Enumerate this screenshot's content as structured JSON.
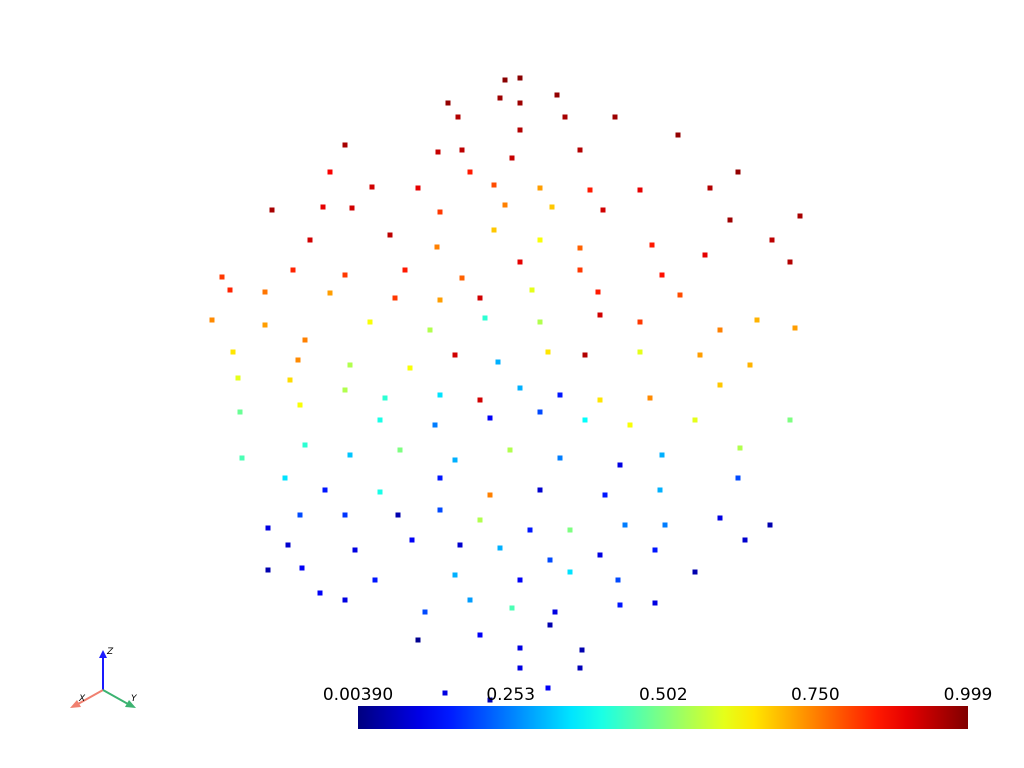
{
  "chart_data": {
    "type": "scatter",
    "xlim": [
      0,
      1024
    ],
    "ylim": [
      0,
      768
    ],
    "x": [
      520,
      505,
      448,
      500,
      557,
      520,
      458,
      565,
      615,
      520,
      678,
      345,
      438,
      462,
      512,
      580,
      330,
      372,
      418,
      470,
      494,
      540,
      590,
      640,
      710,
      738,
      272,
      323,
      352,
      440,
      505,
      552,
      603,
      730,
      800,
      310,
      390,
      437,
      494,
      540,
      580,
      652,
      705,
      772,
      790,
      293,
      345,
      405,
      462,
      520,
      580,
      662,
      222,
      230,
      265,
      330,
      395,
      440,
      480,
      532,
      598,
      680,
      212,
      265,
      305,
      370,
      430,
      485,
      540,
      600,
      640,
      720,
      757,
      795,
      233,
      298,
      350,
      410,
      455,
      498,
      548,
      585,
      640,
      700,
      750,
      238,
      290,
      345,
      385,
      440,
      480,
      520,
      560,
      600,
      650,
      720,
      240,
      300,
      380,
      435,
      490,
      540,
      585,
      630,
      695,
      790,
      242,
      305,
      350,
      400,
      455,
      510,
      560,
      620,
      662,
      740,
      285,
      325,
      380,
      440,
      490,
      540,
      605,
      660,
      738,
      268,
      300,
      345,
      398,
      440,
      480,
      530,
      570,
      625,
      665,
      720,
      770,
      288,
      355,
      412,
      460,
      500,
      550,
      600,
      655,
      745,
      268,
      302,
      375,
      455,
      520,
      570,
      618,
      695,
      320,
      345,
      425,
      470,
      512,
      555,
      620,
      655,
      480,
      550,
      418,
      520,
      582,
      580,
      520,
      490,
      548,
      445
    ],
    "y": [
      690,
      688,
      665,
      670,
      673,
      665,
      651,
      651,
      651,
      638,
      633,
      623,
      616,
      618,
      610,
      618,
      596,
      581,
      580,
      596,
      583,
      580,
      578,
      578,
      580,
      596,
      558,
      561,
      560,
      556,
      563,
      561,
      558,
      548,
      552,
      528,
      533,
      521,
      538,
      528,
      520,
      523,
      513,
      528,
      506,
      498,
      493,
      498,
      490,
      506,
      498,
      493,
      491,
      478,
      476,
      475,
      470,
      468,
      470,
      478,
      476,
      473,
      448,
      443,
      428,
      446,
      438,
      450,
      446,
      453,
      446,
      438,
      448,
      440,
      416,
      408,
      403,
      400,
      413,
      406,
      416,
      413,
      416,
      413,
      403,
      390,
      388,
      378,
      370,
      373,
      368,
      380,
      373,
      368,
      370,
      383,
      356,
      363,
      348,
      343,
      350,
      356,
      348,
      343,
      348,
      348,
      310,
      323,
      313,
      318,
      308,
      318,
      310,
      303,
      313,
      320,
      290,
      278,
      276,
      290,
      273,
      278,
      273,
      278,
      290,
      240,
      253,
      253,
      253,
      258,
      248,
      238,
      238,
      243,
      243,
      250,
      243,
      223,
      218,
      228,
      223,
      220,
      208,
      213,
      218,
      228,
      198,
      200,
      188,
      193,
      188,
      196,
      188,
      196,
      175,
      168,
      156,
      168,
      160,
      156,
      163,
      165,
      133,
      143,
      128,
      120,
      118,
      100,
      100,
      68,
      80,
      75
    ],
    "values": [
      0.99,
      0.99,
      0.98,
      0.97,
      0.98,
      0.97,
      0.95,
      0.96,
      0.97,
      0.95,
      0.98,
      0.96,
      0.93,
      0.94,
      0.93,
      0.95,
      0.88,
      0.92,
      0.9,
      0.85,
      0.8,
      0.72,
      0.85,
      0.9,
      0.95,
      0.98,
      0.96,
      0.9,
      0.92,
      0.82,
      0.75,
      0.68,
      0.92,
      0.97,
      0.96,
      0.92,
      0.94,
      0.75,
      0.68,
      0.62,
      0.78,
      0.85,
      0.9,
      0.94,
      0.95,
      0.84,
      0.82,
      0.85,
      0.78,
      0.9,
      0.82,
      0.86,
      0.82,
      0.84,
      0.76,
      0.72,
      0.82,
      0.72,
      0.92,
      0.6,
      0.85,
      0.8,
      0.74,
      0.72,
      0.75,
      0.62,
      0.55,
      0.42,
      0.55,
      0.92,
      0.82,
      0.75,
      0.7,
      0.72,
      0.65,
      0.74,
      0.55,
      0.62,
      0.92,
      0.3,
      0.65,
      0.95,
      0.6,
      0.72,
      0.7,
      0.6,
      0.66,
      0.55,
      0.42,
      0.35,
      0.92,
      0.3,
      0.15,
      0.65,
      0.74,
      0.68,
      0.48,
      0.62,
      0.4,
      0.25,
      0.12,
      0.2,
      0.38,
      0.62,
      0.6,
      0.5,
      0.45,
      0.42,
      0.32,
      0.5,
      0.3,
      0.55,
      0.25,
      0.1,
      0.3,
      0.55,
      0.35,
      0.15,
      0.4,
      0.15,
      0.75,
      0.08,
      0.15,
      0.3,
      0.2,
      0.1,
      0.2,
      0.18,
      0.05,
      0.2,
      0.55,
      0.15,
      0.5,
      0.25,
      0.25,
      0.1,
      0.05,
      0.08,
      0.1,
      0.12,
      0.08,
      0.3,
      0.2,
      0.1,
      0.15,
      0.08,
      0.05,
      0.12,
      0.15,
      0.3,
      0.12,
      0.35,
      0.2,
      0.05,
      0.12,
      0.1,
      0.2,
      0.28,
      0.45,
      0.1,
      0.15,
      0.1,
      0.12,
      0.05,
      0.02,
      0.1,
      0.05,
      0.06,
      0.1,
      0.05,
      0.12,
      0.1
    ],
    "clim": [
      0.0039,
      0.999
    ],
    "colorbar_ticks": [
      {
        "value": 0.0039,
        "label": "0.00390"
      },
      0.253,
      0.502,
      {
        "value": 0.75,
        "label": "0.750"
      },
      0.999
    ],
    "colormap": "jet",
    "orientation_axes": {
      "x": "X",
      "y": "Y",
      "z": "Z"
    }
  }
}
